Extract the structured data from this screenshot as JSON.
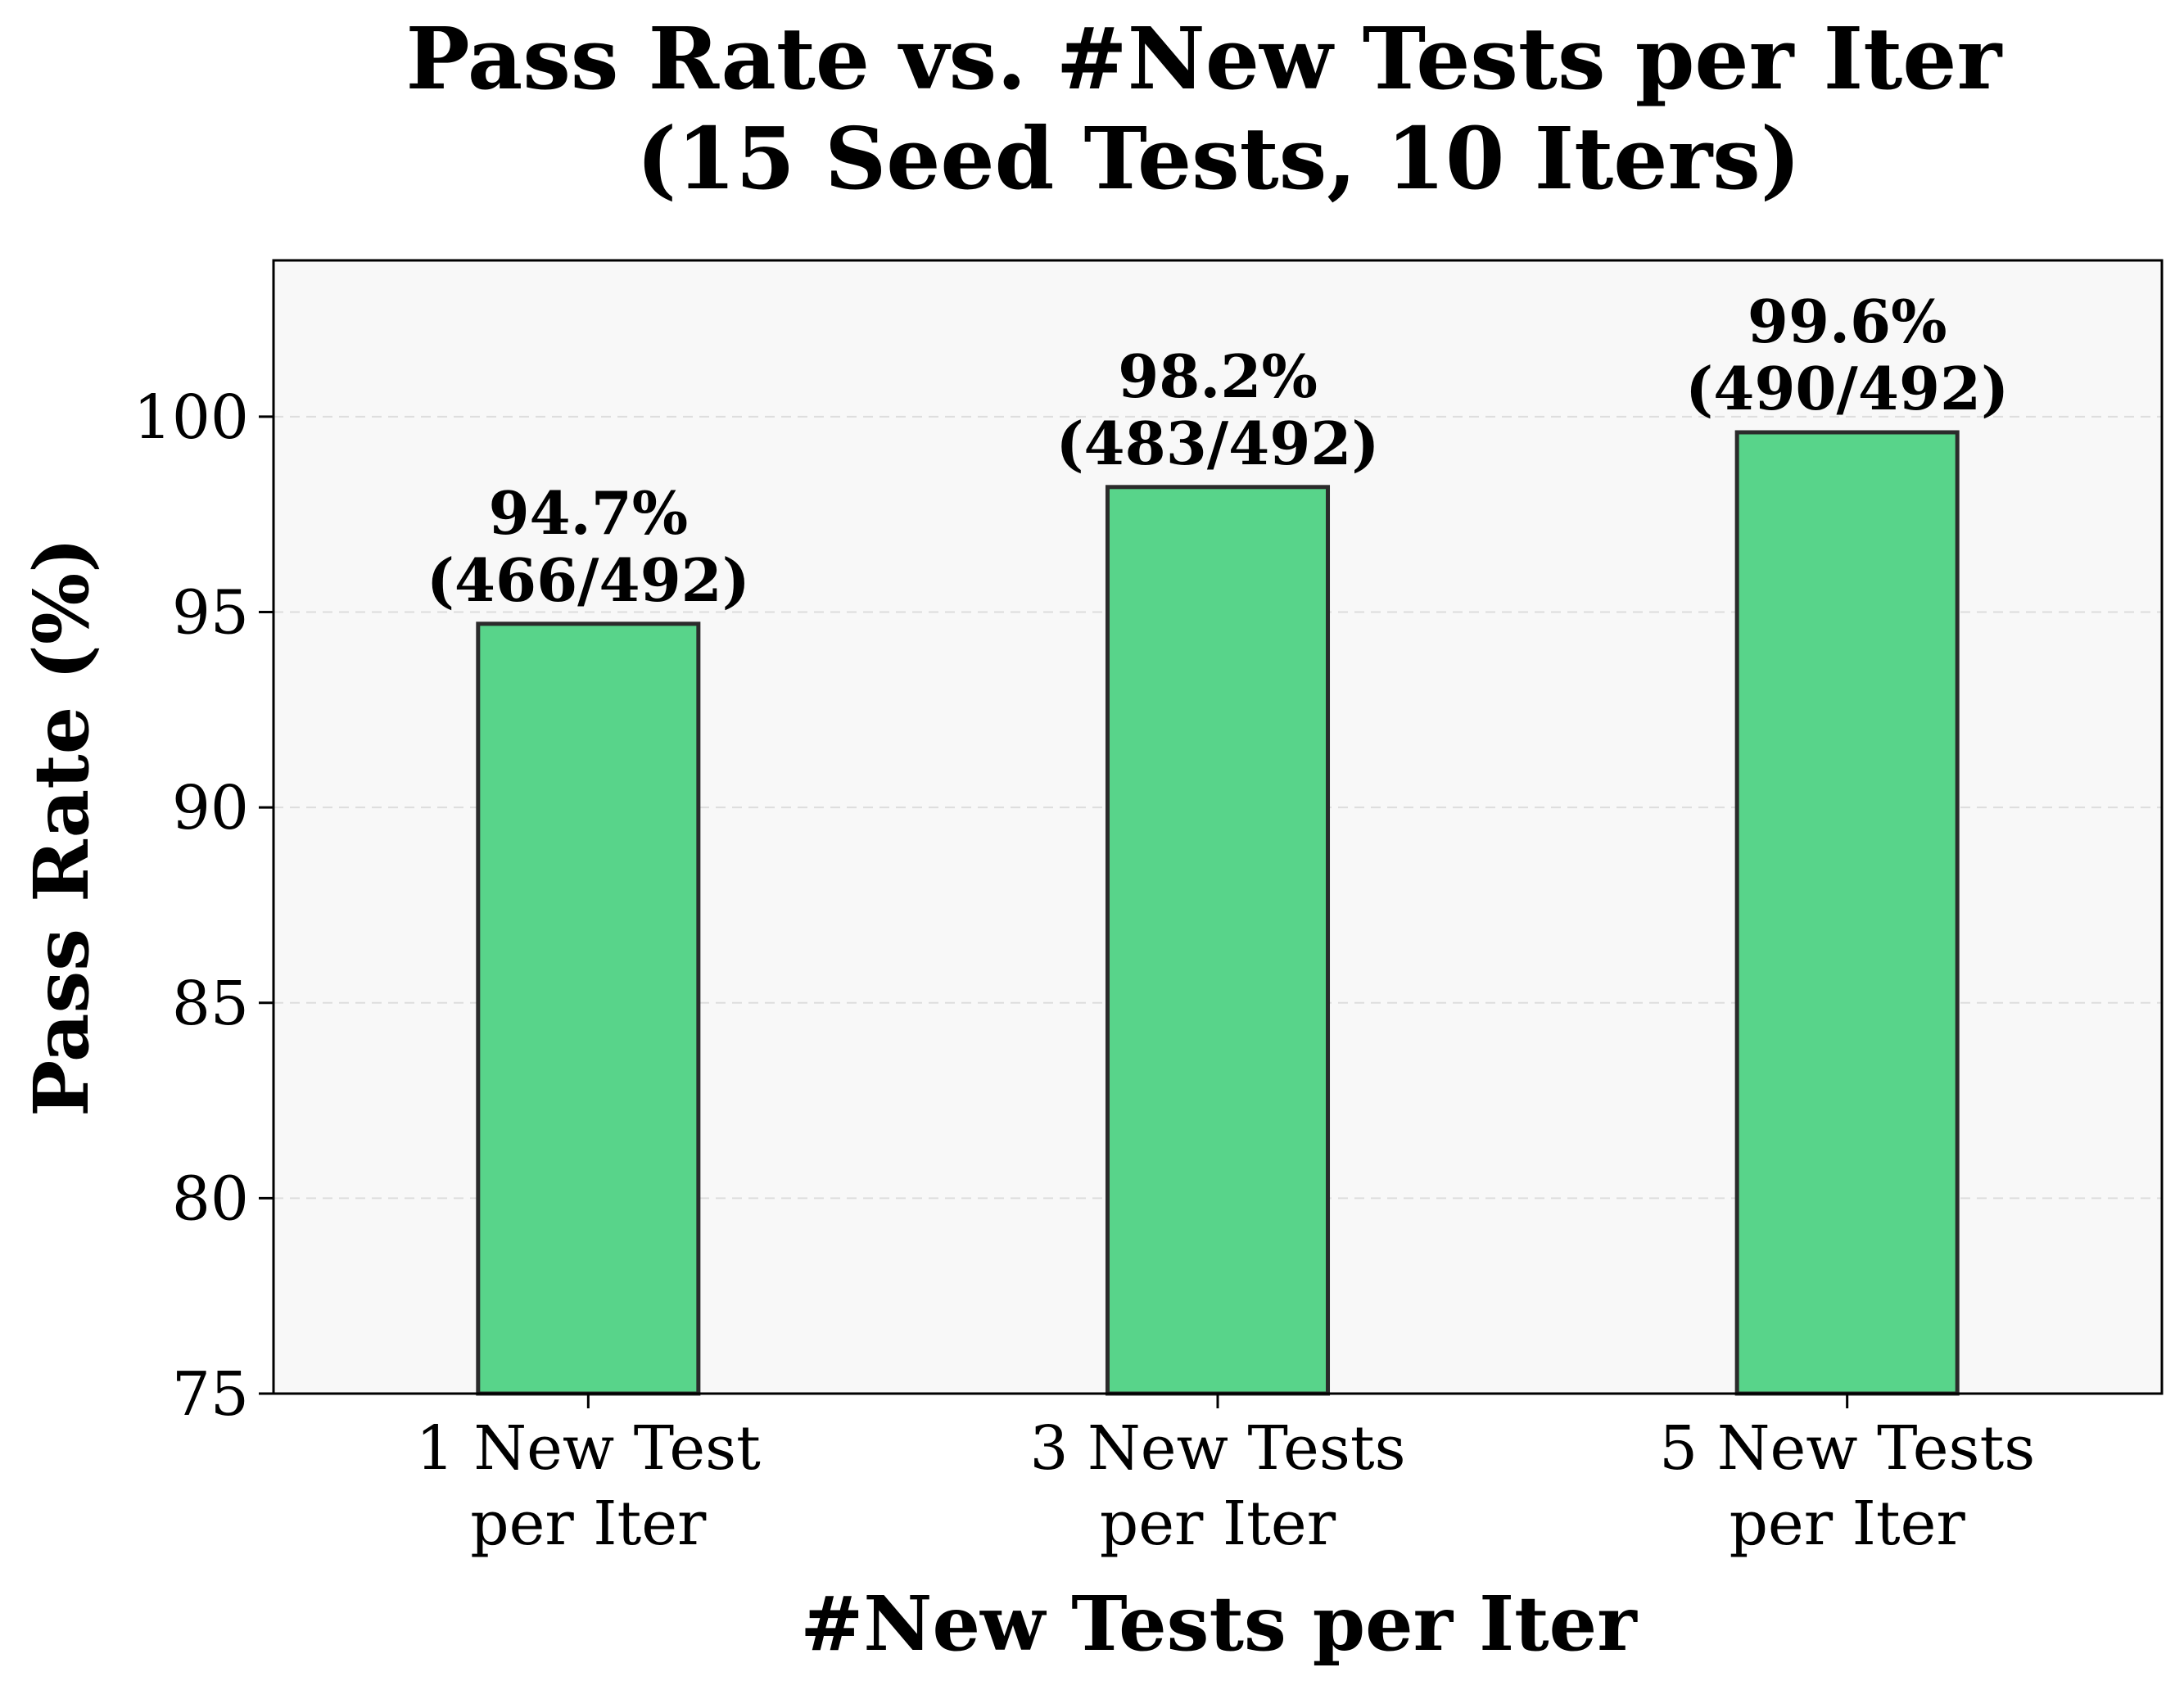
{
  "chart_data": {
    "type": "bar",
    "title": [
      "Pass Rate vs. #New Tests per Iter",
      "(15 Seed Tests, 10 Iters)"
    ],
    "xlabel": "#New Tests per Iter",
    "ylabel": "Pass Rate (%)",
    "categories": [
      [
        "1 New Test",
        "per Iter"
      ],
      [
        "3 New Tests",
        "per Iter"
      ],
      [
        "5 New Tests",
        "per Iter"
      ]
    ],
    "values": [
      94.7,
      98.2,
      99.6
    ],
    "value_labels": [
      [
        "94.7%",
        "(466/492)"
      ],
      [
        "98.2%",
        "(483/492)"
      ],
      [
        "99.6%",
        "(490/492)"
      ]
    ],
    "ylim": [
      75,
      104
    ],
    "yticks": [
      75,
      80,
      85,
      90,
      95,
      100
    ],
    "grid": "horizontal dashed",
    "colors": {
      "bar_fill": "#58d48a",
      "bar_edge": "#2b2b2b",
      "plot_background": "#f8f8f8",
      "grid": "#dddddd"
    }
  }
}
